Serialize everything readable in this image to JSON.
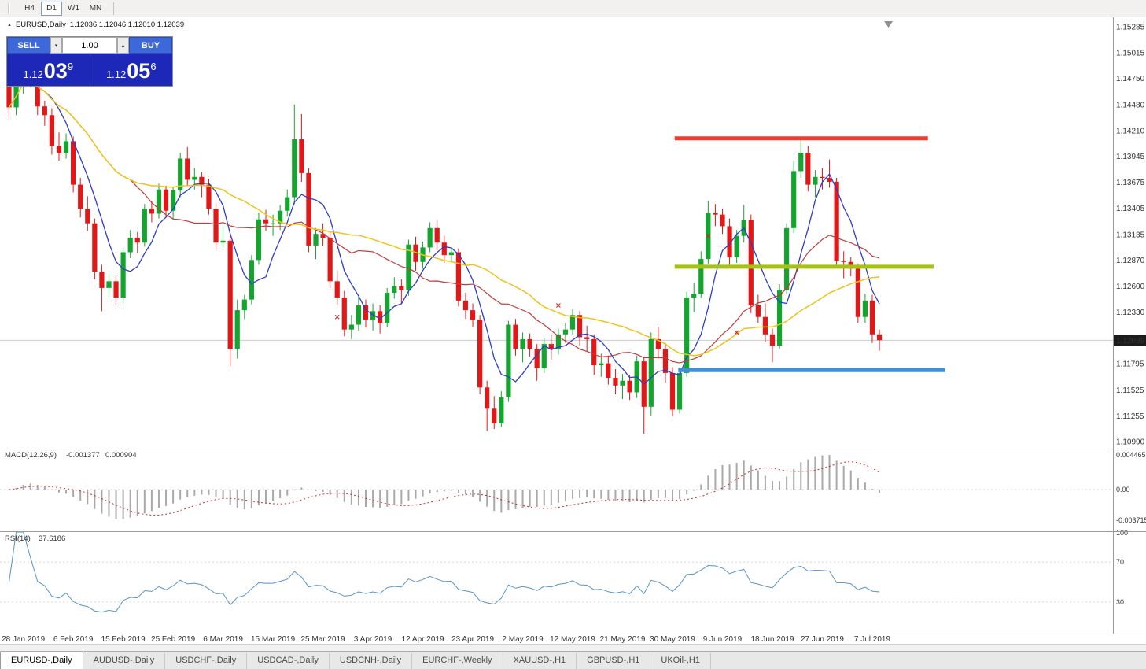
{
  "toolbar": {
    "timeframes": [
      {
        "label": "H4",
        "active": false
      },
      {
        "label": "D1",
        "active": true
      },
      {
        "label": "W1",
        "active": false
      },
      {
        "label": "MN",
        "active": false
      }
    ]
  },
  "chart": {
    "symbol_period": "EURUSD,Daily",
    "ohlc": "1.12036 1.12046 1.12010 1.12039"
  },
  "trade_panel": {
    "sell_label": "SELL",
    "buy_label": "BUY",
    "volume": "1.00",
    "bid": {
      "base": "1.12",
      "pips": "03",
      "pipette": "9"
    },
    "ask": {
      "base": "1.12",
      "pips": "05",
      "pipette": "6"
    }
  },
  "price_axis": {
    "labels": [
      "1.15285",
      "1.15015",
      "1.14750",
      "1.14480",
      "1.14210",
      "1.13945",
      "1.13675",
      "1.13405",
      "1.13135",
      "1.12870",
      "1.12600",
      "1.12330",
      "1.11795",
      "1.11525",
      "1.11255",
      "1.10990"
    ],
    "current": "1.12039"
  },
  "date_axis": {
    "labels": [
      {
        "index": 2,
        "text": "28 Jan 2019"
      },
      {
        "index": 9,
        "text": "6 Feb 2019"
      },
      {
        "index": 16,
        "text": "15 Feb 2019"
      },
      {
        "index": 23,
        "text": "25 Feb 2019"
      },
      {
        "index": 30,
        "text": "6 Mar 2019"
      },
      {
        "index": 37,
        "text": "15 Mar 2019"
      },
      {
        "index": 44,
        "text": "25 Mar 2019"
      },
      {
        "index": 51,
        "text": "3 Apr 2019"
      },
      {
        "index": 58,
        "text": "12 Apr 2019"
      },
      {
        "index": 65,
        "text": "23 Apr 2019"
      },
      {
        "index": 72,
        "text": "2 May 2019"
      },
      {
        "index": 79,
        "text": "12 May 2019"
      },
      {
        "index": 86,
        "text": "21 May 2019"
      },
      {
        "index": 93,
        "text": "30 May 2019"
      },
      {
        "index": 100,
        "text": "9 Jun 2019"
      },
      {
        "index": 107,
        "text": "18 Jun 2019"
      },
      {
        "index": 114,
        "text": "27 Jun 2019"
      },
      {
        "index": 121,
        "text": "7 Jul 2019"
      }
    ]
  },
  "indicators": {
    "macd": {
      "label": "MACD(12,26,9)",
      "value_main": "-0.001377",
      "value_signal": "0.000904",
      "axis": [
        "0.004465",
        "0.00",
        "-0.003715"
      ],
      "fast": 12,
      "slow": 26,
      "signal": 9
    },
    "rsi": {
      "label": "RSI(14)",
      "value": "37.6186",
      "period": 14,
      "levels": [
        "100",
        "70",
        "30"
      ]
    }
  },
  "tabs": [
    {
      "label": "EURUSD-,Daily",
      "active": true
    },
    {
      "label": "AUDUSD-,Daily",
      "active": false
    },
    {
      "label": "USDCHF-,Daily",
      "active": false
    },
    {
      "label": "USDCAD-,Daily",
      "active": false
    },
    {
      "label": "USDCNH-,Daily",
      "active": false
    },
    {
      "label": "EURCHF-,Weekly",
      "active": false
    },
    {
      "label": "XAUUSD-,H1",
      "active": false
    },
    {
      "label": "GBPUSD-,H1",
      "active": false
    },
    {
      "label": "UKOil-,H1",
      "active": false
    }
  ],
  "chart_data": {
    "type": "candlestick",
    "symbol": "EURUSD",
    "period": "Daily",
    "price_range": {
      "top": 1.15285,
      "bottom": 1.1099
    },
    "current_price": 1.12039,
    "colors": {
      "up": "#13a52e",
      "down": "#e21717"
    },
    "moving_averages": [
      {
        "name": "fast",
        "period": 6,
        "color": "#2e3cc8",
        "width": 1.3
      },
      {
        "name": "medium",
        "period": 18,
        "color": "#c23a3a",
        "width": 1.2
      },
      {
        "name": "slow",
        "period": 34,
        "color": "#edc41a",
        "width": 1.5
      }
    ],
    "hlines": [
      {
        "name": "resistance",
        "price": 1.1413,
        "color": "#ef3b30",
        "width": 5,
        "from": 93.3,
        "to": 128.8
      },
      {
        "name": "broken-support",
        "price": 1.128,
        "color": "#a6c314",
        "width": 5,
        "from": 93.3,
        "to": 129.6
      },
      {
        "name": "support",
        "price": 1.1173,
        "color": "#3f8ed6",
        "width": 5,
        "from": 93.8,
        "to": 131.2
      }
    ],
    "markers": [
      {
        "index": 46,
        "price": 1.1228
      },
      {
        "index": 77,
        "price": 1.124
      },
      {
        "index": 98,
        "price": 1.1312
      },
      {
        "index": 100,
        "price": 1.1326
      },
      {
        "index": 102,
        "price": 1.1212
      }
    ],
    "candles": [
      [
        1.1505,
        1.1516,
        1.1434,
        1.1445
      ],
      [
        1.1445,
        1.1476,
        1.1437,
        1.1468
      ],
      [
        1.1468,
        1.1503,
        1.1459,
        1.1495
      ],
      [
        1.1495,
        1.1508,
        1.1466,
        1.1478
      ],
      [
        1.1478,
        1.1489,
        1.1437,
        1.1446
      ],
      [
        1.1446,
        1.1452,
        1.1426,
        1.1437
      ],
      [
        1.1437,
        1.1444,
        1.1396,
        1.1405
      ],
      [
        1.1405,
        1.1419,
        1.139,
        1.1398
      ],
      [
        1.1398,
        1.1418,
        1.1392,
        1.141
      ],
      [
        1.141,
        1.1415,
        1.1357,
        1.1365
      ],
      [
        1.1365,
        1.1372,
        1.1331,
        1.134
      ],
      [
        1.134,
        1.1353,
        1.1317,
        1.1325
      ],
      [
        1.1325,
        1.133,
        1.1267,
        1.1275
      ],
      [
        1.1275,
        1.1282,
        1.1234,
        1.1258
      ],
      [
        1.1258,
        1.1273,
        1.1249,
        1.1265
      ],
      [
        1.1265,
        1.1271,
        1.124,
        1.1248
      ],
      [
        1.1248,
        1.13,
        1.1242,
        1.1295
      ],
      [
        1.1295,
        1.1318,
        1.1289,
        1.131
      ],
      [
        1.131,
        1.1316,
        1.1294,
        1.1305
      ],
      [
        1.1305,
        1.1345,
        1.1301,
        1.134
      ],
      [
        1.134,
        1.1348,
        1.1326,
        1.1335
      ],
      [
        1.1335,
        1.1366,
        1.133,
        1.136
      ],
      [
        1.136,
        1.1364,
        1.1331,
        1.1338
      ],
      [
        1.1338,
        1.1363,
        1.1329,
        1.1359
      ],
      [
        1.1359,
        1.1398,
        1.1352,
        1.1392
      ],
      [
        1.1392,
        1.1404,
        1.1364,
        1.137
      ],
      [
        1.137,
        1.1382,
        1.136,
        1.1373
      ],
      [
        1.1373,
        1.1378,
        1.1352,
        1.1365
      ],
      [
        1.1365,
        1.1371,
        1.1334,
        1.134
      ],
      [
        1.134,
        1.1346,
        1.1298,
        1.1305
      ],
      [
        1.1305,
        1.1322,
        1.13,
        1.1307
      ],
      [
        1.1307,
        1.1312,
        1.1177,
        1.1195
      ],
      [
        1.1195,
        1.1246,
        1.1185,
        1.1235
      ],
      [
        1.1235,
        1.1251,
        1.1226,
        1.1246
      ],
      [
        1.1246,
        1.1292,
        1.1241,
        1.1287
      ],
      [
        1.1287,
        1.1336,
        1.1282,
        1.1329
      ],
      [
        1.1329,
        1.1339,
        1.1317,
        1.1325
      ],
      [
        1.1325,
        1.1334,
        1.1312,
        1.1325
      ],
      [
        1.1325,
        1.1344,
        1.1318,
        1.1338
      ],
      [
        1.1338,
        1.136,
        1.1332,
        1.1352
      ],
      [
        1.1352,
        1.1448,
        1.1345,
        1.1412
      ],
      [
        1.1412,
        1.1438,
        1.1368,
        1.1377
      ],
      [
        1.1377,
        1.1382,
        1.1295,
        1.1302
      ],
      [
        1.1302,
        1.132,
        1.1288,
        1.1314
      ],
      [
        1.1314,
        1.1325,
        1.1302,
        1.131
      ],
      [
        1.131,
        1.1316,
        1.1258,
        1.1265
      ],
      [
        1.1265,
        1.1276,
        1.1241,
        1.1248
      ],
      [
        1.1248,
        1.1255,
        1.1208,
        1.1215
      ],
      [
        1.1215,
        1.123,
        1.1205,
        1.122
      ],
      [
        1.122,
        1.1249,
        1.1214,
        1.124
      ],
      [
        1.124,
        1.1246,
        1.1217,
        1.1225
      ],
      [
        1.1225,
        1.1242,
        1.1214,
        1.1234
      ],
      [
        1.1234,
        1.124,
        1.1211,
        1.1222
      ],
      [
        1.1222,
        1.1258,
        1.1217,
        1.1253
      ],
      [
        1.1253,
        1.1269,
        1.1247,
        1.126
      ],
      [
        1.126,
        1.1267,
        1.1242,
        1.1256
      ],
      [
        1.1256,
        1.1308,
        1.125,
        1.1303
      ],
      [
        1.1303,
        1.1311,
        1.1276,
        1.1285
      ],
      [
        1.1285,
        1.1306,
        1.1278,
        1.13
      ],
      [
        1.13,
        1.1326,
        1.1295,
        1.132
      ],
      [
        1.132,
        1.1328,
        1.1297,
        1.1305
      ],
      [
        1.1305,
        1.1312,
        1.1284,
        1.1292
      ],
      [
        1.1292,
        1.13,
        1.1286,
        1.1295
      ],
      [
        1.1295,
        1.1299,
        1.1239,
        1.1245
      ],
      [
        1.1245,
        1.1253,
        1.1226,
        1.1235
      ],
      [
        1.1235,
        1.1242,
        1.1218,
        1.1225
      ],
      [
        1.1225,
        1.123,
        1.1148,
        1.1155
      ],
      [
        1.1155,
        1.1162,
        1.111,
        1.1133
      ],
      [
        1.1133,
        1.1146,
        1.1112,
        1.1118
      ],
      [
        1.1118,
        1.1151,
        1.1114,
        1.1145
      ],
      [
        1.1145,
        1.1224,
        1.114,
        1.122
      ],
      [
        1.122,
        1.1226,
        1.1188,
        1.1195
      ],
      [
        1.1195,
        1.1212,
        1.1181,
        1.1205
      ],
      [
        1.1205,
        1.1211,
        1.1187,
        1.1195
      ],
      [
        1.1195,
        1.12,
        1.1162,
        1.1175
      ],
      [
        1.1175,
        1.1206,
        1.117,
        1.12
      ],
      [
        1.12,
        1.121,
        1.1184,
        1.1195
      ],
      [
        1.1195,
        1.1216,
        1.1189,
        1.121
      ],
      [
        1.121,
        1.1222,
        1.1201,
        1.1215
      ],
      [
        1.1215,
        1.1236,
        1.121,
        1.123
      ],
      [
        1.123,
        1.1234,
        1.1198,
        1.1207
      ],
      [
        1.1207,
        1.1219,
        1.1192,
        1.1205
      ],
      [
        1.1205,
        1.121,
        1.1168,
        1.1178
      ],
      [
        1.1178,
        1.119,
        1.1166,
        1.118
      ],
      [
        1.118,
        1.1188,
        1.1158,
        1.1165
      ],
      [
        1.1165,
        1.1174,
        1.1148,
        1.1157
      ],
      [
        1.1157,
        1.1169,
        1.1143,
        1.1162
      ],
      [
        1.1162,
        1.1168,
        1.1142,
        1.115
      ],
      [
        1.115,
        1.1188,
        1.1144,
        1.1182
      ],
      [
        1.1182,
        1.1187,
        1.1107,
        1.1135
      ],
      [
        1.1135,
        1.1212,
        1.1126,
        1.1205
      ],
      [
        1.1205,
        1.1218,
        1.1185,
        1.1195
      ],
      [
        1.1195,
        1.1201,
        1.116,
        1.117
      ],
      [
        1.117,
        1.1176,
        1.1125,
        1.1132
      ],
      [
        1.1132,
        1.1176,
        1.1128,
        1.117
      ],
      [
        1.117,
        1.1254,
        1.1166,
        1.1248
      ],
      [
        1.1248,
        1.1263,
        1.1233,
        1.1252
      ],
      [
        1.1252,
        1.1296,
        1.1248,
        1.1288
      ],
      [
        1.1288,
        1.1348,
        1.1283,
        1.1336
      ],
      [
        1.1336,
        1.1345,
        1.1322,
        1.1334
      ],
      [
        1.1334,
        1.134,
        1.1314,
        1.1322
      ],
      [
        1.1322,
        1.133,
        1.1282,
        1.129
      ],
      [
        1.129,
        1.1318,
        1.1284,
        1.1312
      ],
      [
        1.1312,
        1.1344,
        1.1305,
        1.1328
      ],
      [
        1.1328,
        1.1334,
        1.1232,
        1.124
      ],
      [
        1.124,
        1.1251,
        1.1222,
        1.1228
      ],
      [
        1.1228,
        1.1242,
        1.1202,
        1.121
      ],
      [
        1.121,
        1.1216,
        1.1181,
        1.1198
      ],
      [
        1.1198,
        1.1262,
        1.1195,
        1.1256
      ],
      [
        1.1256,
        1.1325,
        1.1252,
        1.132
      ],
      [
        1.132,
        1.139,
        1.1315,
        1.1379
      ],
      [
        1.1379,
        1.1412,
        1.1372,
        1.1398
      ],
      [
        1.1398,
        1.1405,
        1.1358,
        1.1365
      ],
      [
        1.1365,
        1.138,
        1.1352,
        1.1373
      ],
      [
        1.1373,
        1.1382,
        1.136,
        1.1372
      ],
      [
        1.1372,
        1.1391,
        1.1362,
        1.1368
      ],
      [
        1.1368,
        1.1372,
        1.128,
        1.1286
      ],
      [
        1.1286,
        1.1296,
        1.1268,
        1.1285
      ],
      [
        1.1285,
        1.129,
        1.127,
        1.1278
      ],
      [
        1.1278,
        1.1283,
        1.1222,
        1.1228
      ],
      [
        1.1228,
        1.1252,
        1.1222,
        1.1245
      ],
      [
        1.1245,
        1.1251,
        1.1201,
        1.121
      ],
      [
        1.121,
        1.1215,
        1.1193,
        1.12039
      ]
    ]
  }
}
